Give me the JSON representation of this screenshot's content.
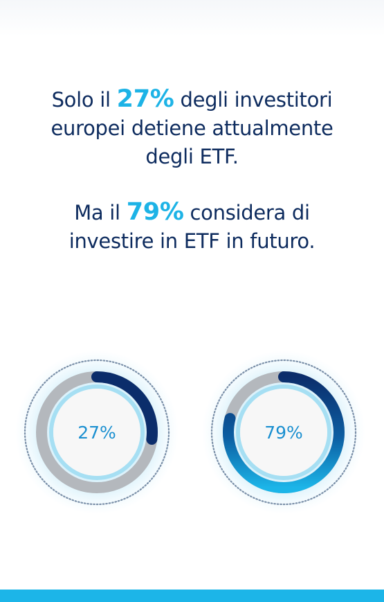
{
  "headline": {
    "line1_pre": "Solo il ",
    "line1_highlight": "27%",
    "line1_post": " degli investitori",
    "line2": "europei detiene attualmente",
    "line3": "degli ETF."
  },
  "subheadline": {
    "line1_pre": "Ma il ",
    "line1_highlight": "79%",
    "line1_post": " considera di",
    "line2": "investire in ETF in futuro."
  },
  "colors": {
    "text": "#0d2b5e",
    "highlight": "#1db3e6",
    "track": "#b4b8bd",
    "arc_dark": "#0b2d6b",
    "arc_light": "#1cb5e8",
    "bottom_bar": "#1cb5e8"
  },
  "chart_data": [
    {
      "type": "donut",
      "value": 27,
      "label": "27%"
    },
    {
      "type": "donut",
      "value": 79,
      "label": "79%"
    }
  ]
}
